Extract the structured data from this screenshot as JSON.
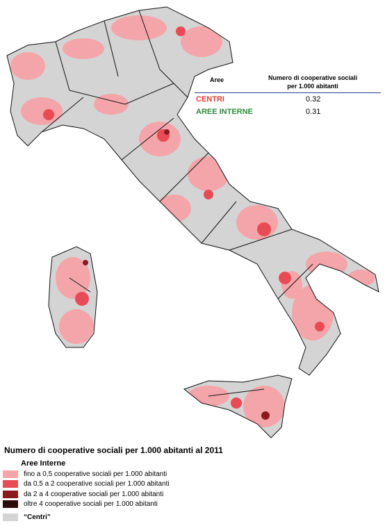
{
  "table": {
    "headers": [
      "Aree",
      "Numero di cooperative sociali per 1.000 abitanti"
    ],
    "rows": [
      [
        "CENTRI",
        0.32
      ],
      [
        "AREE INTERNE",
        0.31
      ]
    ]
  },
  "legend": {
    "title": "Numero di cooperative sociali per 1.000 abitanti al 2011",
    "subtitle": "Aree Interne",
    "items": [
      {
        "label": "fino a 0,5 cooperative sociali per 1.000 abitanti",
        "color": "#f4a5a9"
      },
      {
        "label": "da 0,5 a 2 cooperative sociali per 1.000 abitanti",
        "color": "#e84b55"
      },
      {
        "label": "da 2 a 4 cooperative sociali per 1.000 abitanti",
        "color": "#8b1a1f"
      },
      {
        "label": "oltre 4 cooperative sociali per 1.000 abitanti",
        "color": "#2a0c0c"
      },
      {
        "label": "“Centri”",
        "color": "#d4d4d4"
      }
    ]
  }
}
